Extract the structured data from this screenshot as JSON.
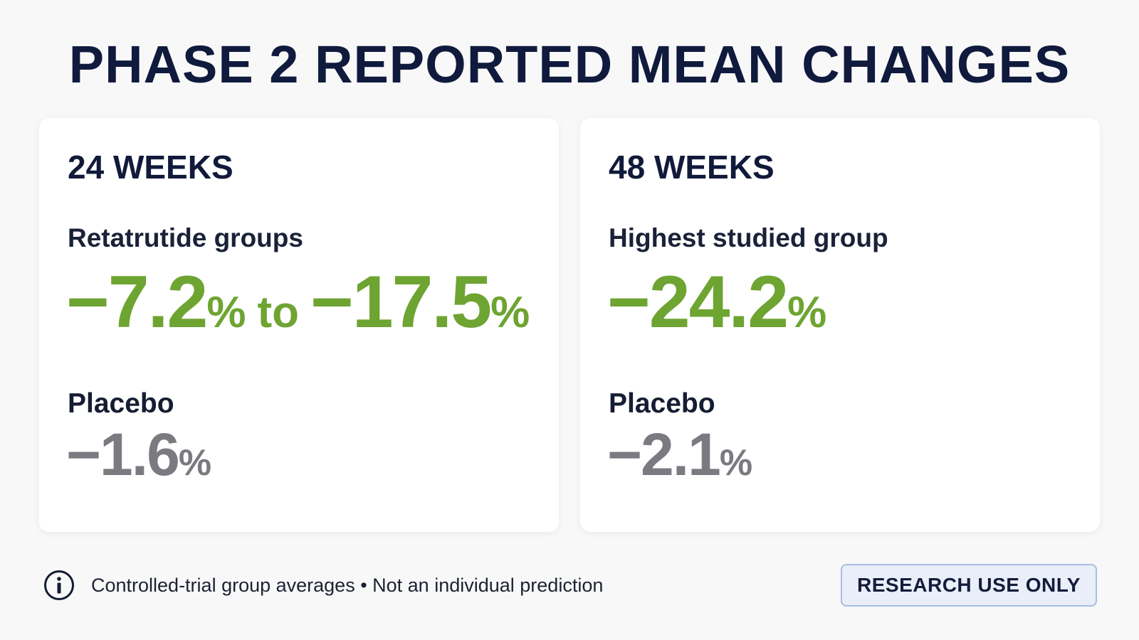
{
  "title": "PHASE 2 REPORTED MEAN CHANGES",
  "cards": [
    {
      "heading": "24 WEEKS",
      "group_label": "Retatrutide groups",
      "group_value": {
        "low": "−7.2",
        "low_unit": "%",
        "joiner": "to",
        "high": "−17.5",
        "high_unit": "%"
      },
      "placebo_label": "Placebo",
      "placebo_value": "−1.6",
      "placebo_unit": "%"
    },
    {
      "heading": "48 WEEKS",
      "group_label": "Highest studied group",
      "group_value": {
        "value": "−24.2",
        "unit": "%"
      },
      "placebo_label": "Placebo",
      "placebo_value": "−2.1",
      "placebo_unit": "%"
    }
  ],
  "footer": {
    "note": "Controlled-trial group averages • Not an individual prediction",
    "badge": "RESEARCH USE ONLY"
  }
}
